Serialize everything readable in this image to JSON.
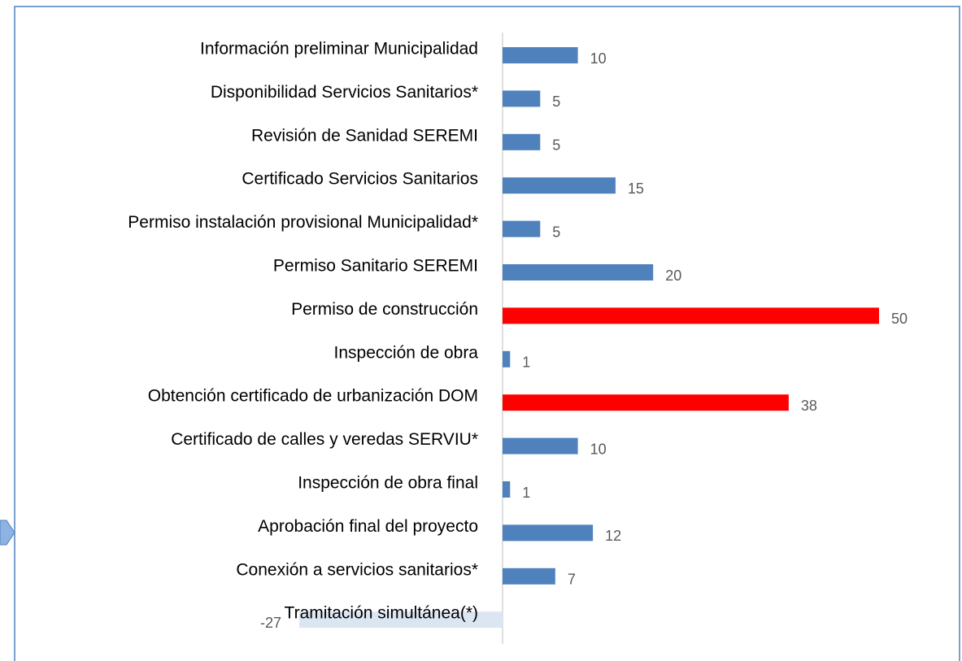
{
  "chart_data": {
    "type": "bar",
    "orientation": "horizontal",
    "categories": [
      "Información preliminar Municipalidad",
      "Disponibilidad Servicios Sanitarios*",
      "Revisión de Sanidad SEREMI",
      "Certificado Servicios Sanitarios",
      "Permiso instalación provisional Municipalidad*",
      "Permiso Sanitario SEREMI",
      "Permiso de construcción",
      "Inspección de obra",
      "Obtención certificado de urbanización DOM",
      "Certificado de calles y veredas SERVIU*",
      "Inspección de obra final",
      "Aprobación final del proyecto",
      "Conexión a servicios sanitarios*",
      "Tramitación simultánea(*)"
    ],
    "values": [
      10,
      5,
      5,
      15,
      5,
      20,
      50,
      1,
      38,
      10,
      1,
      12,
      7,
      -27
    ],
    "colors": [
      "#4f81bd",
      "#4f81bd",
      "#4f81bd",
      "#4f81bd",
      "#4f81bd",
      "#4f81bd",
      "#ff0000",
      "#4f81bd",
      "#ff0000",
      "#4f81bd",
      "#4f81bd",
      "#4f81bd",
      "#4f81bd",
      "#dce6f2"
    ]
  }
}
